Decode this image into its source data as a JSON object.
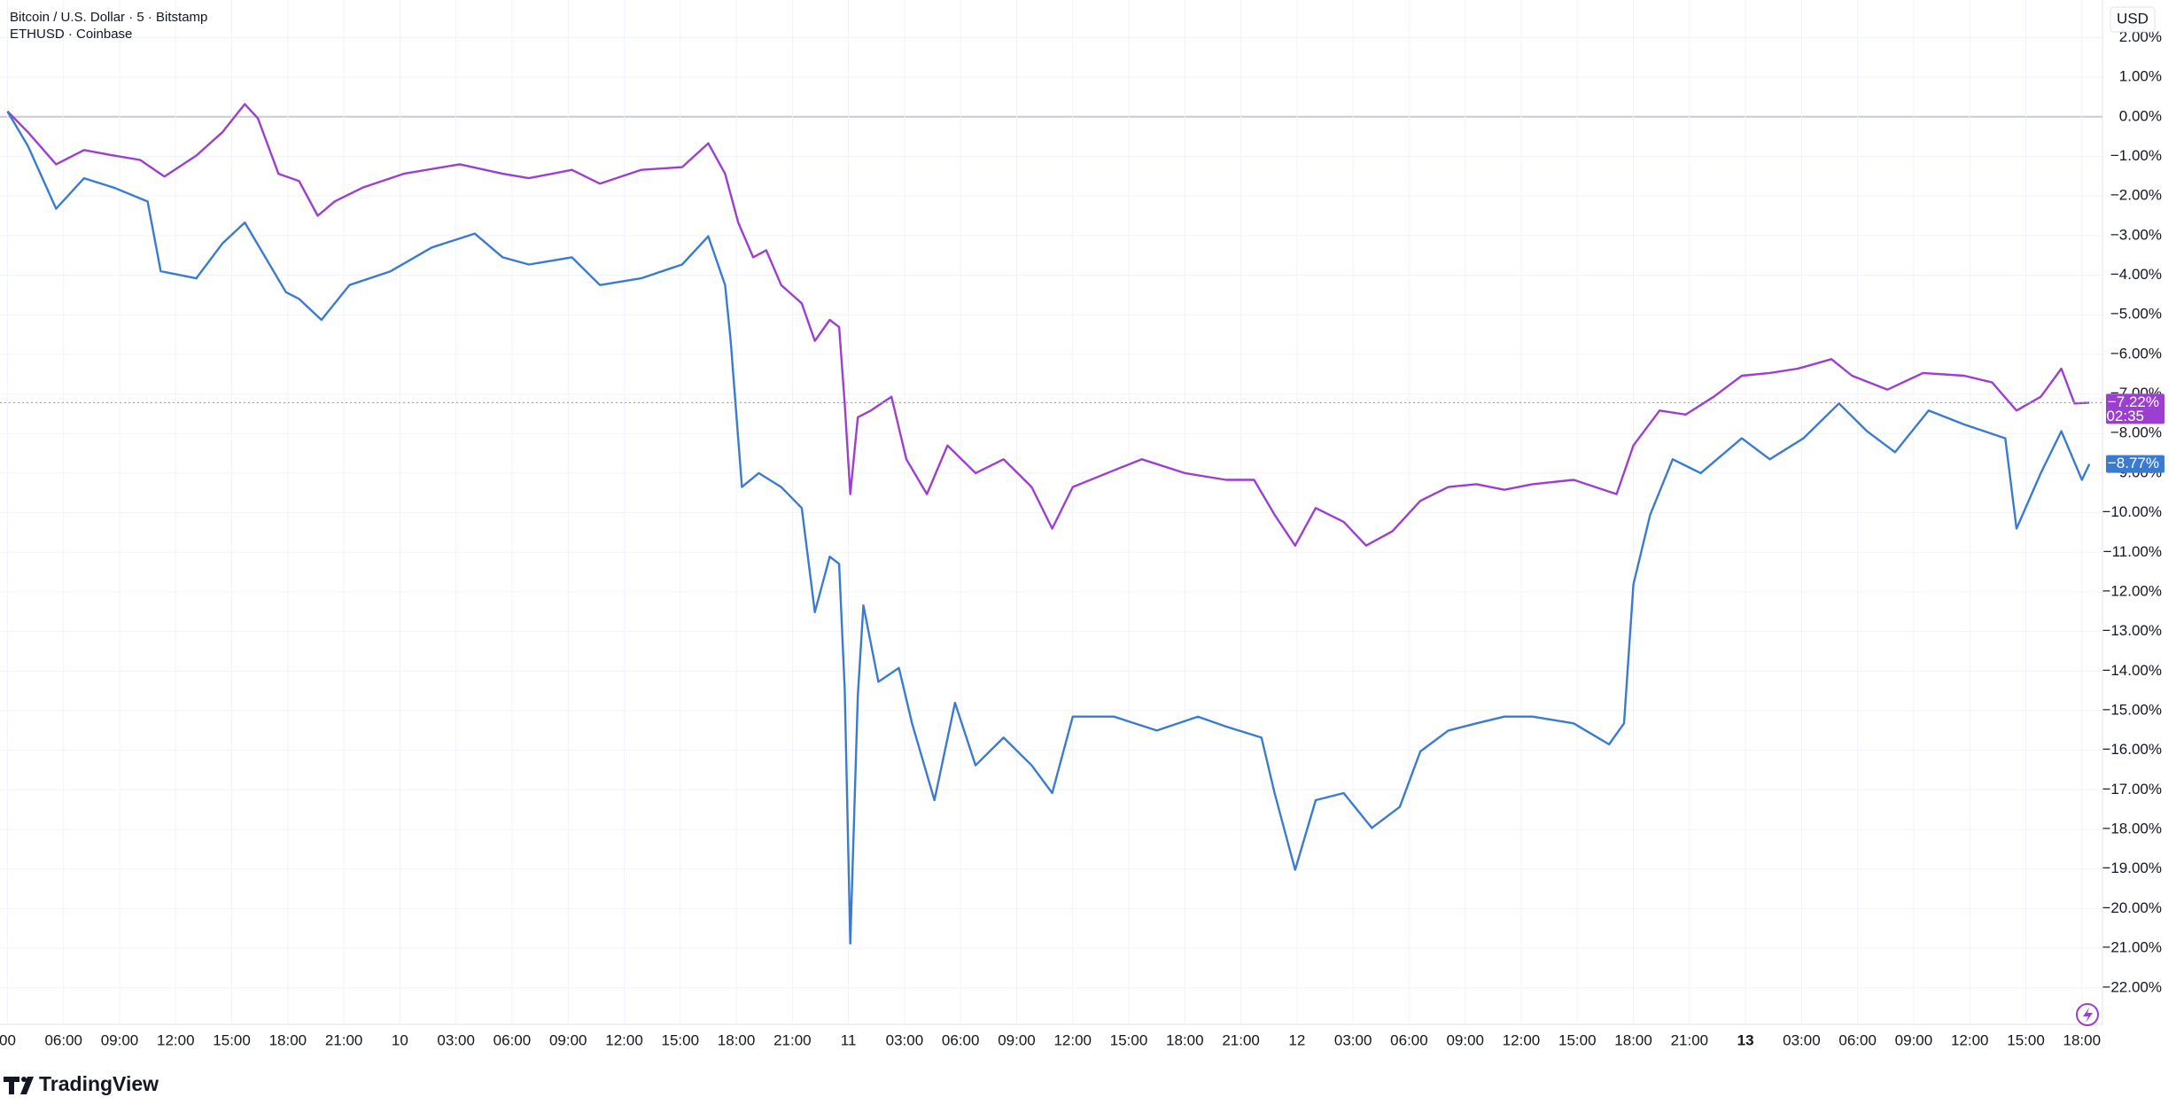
{
  "chart_data": {
    "type": "line",
    "currency": "USD",
    "brand": "TradingView",
    "xlim": [
      2.6,
      115.1
    ],
    "ylim": [
      -22.9,
      2.95
    ],
    "grid": true,
    "xticks": [
      {
        "value": 3,
        "label": "00"
      },
      {
        "value": 6,
        "label": "06:00"
      },
      {
        "value": 9,
        "label": "09:00"
      },
      {
        "value": 12,
        "label": "12:00"
      },
      {
        "value": 15,
        "label": "15:00"
      },
      {
        "value": 18,
        "label": "18:00"
      },
      {
        "value": 21,
        "label": "21:00"
      },
      {
        "value": 24,
        "label": "10"
      },
      {
        "value": 27,
        "label": "03:00"
      },
      {
        "value": 30,
        "label": "06:00"
      },
      {
        "value": 33,
        "label": "09:00"
      },
      {
        "value": 36,
        "label": "12:00"
      },
      {
        "value": 39,
        "label": "15:00"
      },
      {
        "value": 42,
        "label": "18:00"
      },
      {
        "value": 45,
        "label": "21:00"
      },
      {
        "value": 48,
        "label": "11"
      },
      {
        "value": 51,
        "label": "03:00"
      },
      {
        "value": 54,
        "label": "06:00"
      },
      {
        "value": 57,
        "label": "09:00"
      },
      {
        "value": 60,
        "label": "12:00"
      },
      {
        "value": 63,
        "label": "15:00"
      },
      {
        "value": 66,
        "label": "18:00"
      },
      {
        "value": 69,
        "label": "21:00"
      },
      {
        "value": 72,
        "label": "12"
      },
      {
        "value": 75,
        "label": "03:00"
      },
      {
        "value": 78,
        "label": "06:00"
      },
      {
        "value": 81,
        "label": "09:00"
      },
      {
        "value": 84,
        "label": "12:00"
      },
      {
        "value": 87,
        "label": "15:00"
      },
      {
        "value": 90,
        "label": "18:00"
      },
      {
        "value": 93,
        "label": "21:00"
      },
      {
        "value": 96,
        "label": "13",
        "bold": true
      },
      {
        "value": 99,
        "label": "03:00"
      },
      {
        "value": 102,
        "label": "06:00"
      },
      {
        "value": 105,
        "label": "09:00"
      },
      {
        "value": 108,
        "label": "12:00"
      },
      {
        "value": 111,
        "label": "15:00"
      },
      {
        "value": 114,
        "label": "18:00"
      }
    ],
    "yticks": [
      {
        "value": 2,
        "label": "2.00%"
      },
      {
        "value": 1,
        "label": "1.00%"
      },
      {
        "value": 0,
        "label": "0.00%"
      },
      {
        "value": -1,
        "label": "−1.00%"
      },
      {
        "value": -2,
        "label": "−2.00%"
      },
      {
        "value": -3,
        "label": "−3.00%"
      },
      {
        "value": -4,
        "label": "−4.00%"
      },
      {
        "value": -5,
        "label": "−5.00%"
      },
      {
        "value": -6,
        "label": "−6.00%"
      },
      {
        "value": -7,
        "label": "−7.00%"
      },
      {
        "value": -8,
        "label": "−8.00%"
      },
      {
        "value": -9,
        "label": "−9.00%"
      },
      {
        "value": -10,
        "label": "−10.00%"
      },
      {
        "value": -11,
        "label": "−11.00%"
      },
      {
        "value": -12,
        "label": "−12.00%"
      },
      {
        "value": -13,
        "label": "−13.00%"
      },
      {
        "value": -14,
        "label": "−14.00%"
      },
      {
        "value": -15,
        "label": "−15.00%"
      },
      {
        "value": -16,
        "label": "−16.00%"
      },
      {
        "value": -17,
        "label": "−17.00%"
      },
      {
        "value": -18,
        "label": "−18.00%"
      },
      {
        "value": -19,
        "label": "−19.00%"
      },
      {
        "value": -20,
        "label": "−20.00%"
      },
      {
        "value": -21,
        "label": "−21.00%"
      },
      {
        "value": -22,
        "label": "−22.00%"
      }
    ],
    "series": [
      {
        "name": "Bitcoin / U.S. Dollar · 5 · Bitstamp",
        "color": "#9c3fd0",
        "last_label": "−7.22%",
        "countdown": "02:35",
        "x": [
          3.0,
          4.1,
          5.6,
          7.1,
          8.7,
          10.1,
          11.4,
          13.1,
          14.5,
          15.7,
          16.4,
          17.5,
          18.6,
          19.6,
          20.5,
          22.0,
          24.2,
          27.2,
          29.5,
          30.9,
          33.2,
          34.7,
          36.9,
          39.1,
          40.5,
          41.4,
          42.1,
          42.9,
          43.6,
          44.4,
          45.5,
          46.2,
          47.0,
          47.5,
          47.8,
          48.1,
          48.5,
          49.2,
          50.3,
          51.1,
          52.2,
          53.3,
          54.8,
          56.3,
          57.8,
          58.9,
          60.0,
          62.2,
          63.7,
          66.0,
          68.2,
          69.7,
          70.8,
          71.9,
          73.0,
          74.5,
          75.7,
          77.1,
          78.6,
          80.1,
          81.6,
          83.1,
          84.6,
          86.8,
          89.1,
          90.0,
          91.4,
          92.8,
          94.3,
          95.8,
          97.3,
          98.8,
          100.6,
          101.7,
          103.6,
          105.5,
          107.7,
          109.2,
          110.5,
          111.8,
          112.9,
          113.6,
          114.4
        ],
        "values": [
          0.14,
          -0.39,
          -1.2,
          -0.84,
          -0.98,
          -1.09,
          -1.51,
          -0.98,
          -0.39,
          0.32,
          -0.04,
          -1.44,
          -1.62,
          -2.5,
          -2.14,
          -1.79,
          -1.44,
          -1.2,
          -1.44,
          -1.55,
          -1.34,
          -1.69,
          -1.34,
          -1.27,
          -0.67,
          -1.44,
          -2.67,
          -3.55,
          -3.37,
          -4.25,
          -4.71,
          -5.66,
          -5.13,
          -5.31,
          -7.24,
          -9.53,
          -7.59,
          -7.42,
          -7.07,
          -8.65,
          -9.53,
          -8.3,
          -9.0,
          -8.65,
          -9.35,
          -10.4,
          -9.35,
          -8.93,
          -8.65,
          -9.0,
          -9.17,
          -9.17,
          -10.05,
          -10.83,
          -9.88,
          -10.23,
          -10.83,
          -10.47,
          -9.7,
          -9.35,
          -9.28,
          -9.42,
          -9.28,
          -9.17,
          -9.53,
          -8.3,
          -7.42,
          -7.52,
          -7.07,
          -6.54,
          -6.47,
          -6.36,
          -6.12,
          -6.54,
          -6.89,
          -6.47,
          -6.54,
          -6.71,
          -7.42,
          -7.07,
          -6.36,
          -7.24,
          -7.22
        ]
      },
      {
        "name": "ETHUSD · Coinbase",
        "color": "#3a7bd0",
        "last_label": "−8.77%",
        "x": [
          3.0,
          4.1,
          5.6,
          7.1,
          8.7,
          10.5,
          11.2,
          13.1,
          14.5,
          15.7,
          16.8,
          17.9,
          18.6,
          19.8,
          21.3,
          23.5,
          25.7,
          28.0,
          29.5,
          30.9,
          33.2,
          34.7,
          36.9,
          39.1,
          40.5,
          41.4,
          41.7,
          42.3,
          43.2,
          44.4,
          45.5,
          46.2,
          47.0,
          47.5,
          47.8,
          48.1,
          48.5,
          48.8,
          49.6,
          50.7,
          51.4,
          52.6,
          53.7,
          54.8,
          56.3,
          57.8,
          58.9,
          60.0,
          62.2,
          64.5,
          66.7,
          68.2,
          70.1,
          70.8,
          71.9,
          73.0,
          74.5,
          76.0,
          77.5,
          78.6,
          80.1,
          81.6,
          83.1,
          84.6,
          86.8,
          88.7,
          89.5,
          90.0,
          90.9,
          92.1,
          93.6,
          95.8,
          97.3,
          99.1,
          101.0,
          102.5,
          104.0,
          105.8,
          107.7,
          109.9,
          110.5,
          111.8,
          112.9,
          114.0,
          114.4
        ],
        "values": [
          0.14,
          -0.74,
          -2.32,
          -1.55,
          -1.79,
          -2.14,
          -3.9,
          -4.08,
          -3.2,
          -2.67,
          -3.55,
          -4.43,
          -4.6,
          -5.13,
          -4.25,
          -3.9,
          -3.3,
          -2.95,
          -3.55,
          -3.73,
          -3.55,
          -4.25,
          -4.08,
          -3.73,
          -3.02,
          -4.25,
          -5.66,
          -9.35,
          -9.0,
          -9.35,
          -9.88,
          -12.51,
          -11.11,
          -11.29,
          -14.45,
          -20.88,
          -14.62,
          -12.34,
          -14.27,
          -13.92,
          -15.32,
          -17.26,
          -14.8,
          -16.38,
          -15.68,
          -16.38,
          -17.08,
          -15.15,
          -15.15,
          -15.5,
          -15.15,
          -15.4,
          -15.68,
          -17.08,
          -19.02,
          -17.26,
          -17.08,
          -17.96,
          -17.43,
          -16.03,
          -15.5,
          -15.32,
          -15.15,
          -15.15,
          -15.32,
          -15.85,
          -15.32,
          -11.81,
          -10.05,
          -8.65,
          -9.0,
          -8.12,
          -8.65,
          -8.12,
          -7.24,
          -7.94,
          -8.47,
          -7.42,
          -7.77,
          -8.12,
          -10.4,
          -9.0,
          -7.94,
          -9.17,
          -8.77
        ]
      }
    ]
  }
}
